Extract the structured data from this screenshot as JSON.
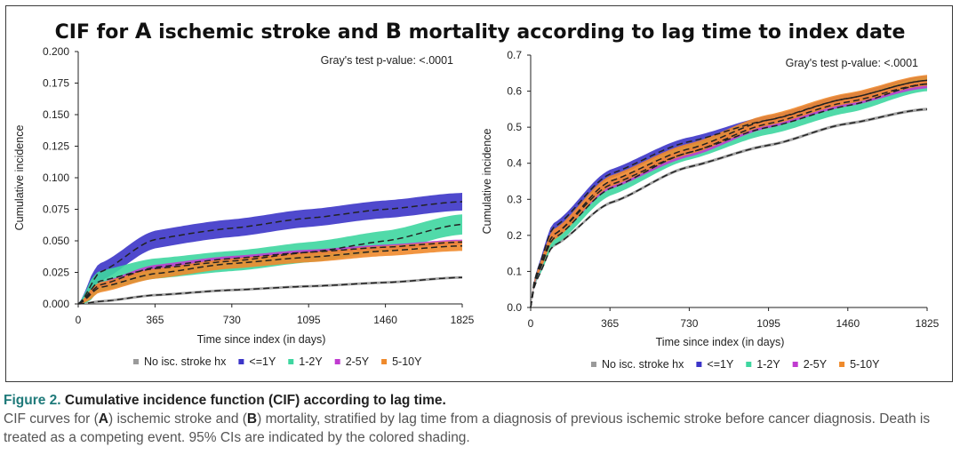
{
  "figure_title": {
    "part1": "CIF for ",
    "letter_a": "A",
    "part2": " ischemic stroke and ",
    "letter_b": "B",
    "part3": " mortality according to lag time to index date"
  },
  "caption": {
    "label": "Figure 2.",
    "title": "Cumulative incidence function (CIF) according to lag time.",
    "text1": "CIF curves for (",
    "a": "A",
    "text2": ") ischemic stroke and (",
    "b": "B",
    "text3": ") mortality, stratified by lag time from a diagnosis of previous ischemic stroke before cancer diagnosis. Death is treated as a competing event. 95% CIs are indicated by the colored shading."
  },
  "colors": {
    "No isc. stroke hx": "#9a9a9a",
    "<=1Y": "#3c35c8",
    "1-2Y": "#3ed6a0",
    "2-5Y": "#c03bd0",
    "5-10Y": "#ef8a2c"
  },
  "chart_data": [
    {
      "type": "line",
      "panel": "A",
      "annotation": "Gray's test p-value: <.0001",
      "xlabel": "Time since index (in days)",
      "ylabel": "Cumulative incidence",
      "xlim": [
        0,
        1825
      ],
      "ylim": [
        0,
        0.2
      ],
      "xticks": [
        "0",
        "365",
        "730",
        "1095",
        "1460",
        "1825"
      ],
      "yticks": [
        "0.000",
        "0.025",
        "0.050",
        "0.075",
        "0.100",
        "0.125",
        "0.150",
        "0.175",
        "0.200"
      ],
      "legend_position": "bottom",
      "x": [
        0,
        100,
        365,
        730,
        1095,
        1460,
        1825
      ],
      "series": [
        {
          "name": "No isc. stroke hx",
          "values": [
            0,
            0.002,
            0.007,
            0.011,
            0.014,
            0.017,
            0.021
          ],
          "ci": 0.001
        },
        {
          "name": "<=1Y",
          "values": [
            0,
            0.025,
            0.051,
            0.06,
            0.068,
            0.075,
            0.081
          ],
          "ci": 0.007
        },
        {
          "name": "1-2Y",
          "values": [
            0,
            0.018,
            0.028,
            0.034,
            0.041,
            0.05,
            0.063
          ],
          "ci": 0.008
        },
        {
          "name": "2-5Y",
          "values": [
            0,
            0.015,
            0.029,
            0.036,
            0.041,
            0.045,
            0.049
          ],
          "ci": 0.002
        },
        {
          "name": "5-10Y",
          "values": [
            0,
            0.013,
            0.024,
            0.032,
            0.037,
            0.042,
            0.046
          ],
          "ci": 0.004
        }
      ]
    },
    {
      "type": "line",
      "panel": "B",
      "annotation": "Gray's test p-value: <.0001",
      "xlabel": "Time since index (in days)",
      "ylabel": "Cumulative incidence",
      "xlim": [
        0,
        1825
      ],
      "ylim": [
        0,
        0.7
      ],
      "xticks": [
        "0",
        "365",
        "730",
        "1095",
        "1460",
        "1825"
      ],
      "yticks": [
        "0.0",
        "0.1",
        "0.2",
        "0.3",
        "0.4",
        "0.5",
        "0.6",
        "0.7"
      ],
      "legend_position": "bottom",
      "x": [
        0,
        20,
        100,
        365,
        730,
        1095,
        1460,
        1825
      ],
      "series": [
        {
          "name": "No isc. stroke hx",
          "values": [
            0,
            0.07,
            0.17,
            0.29,
            0.39,
            0.45,
            0.51,
            0.55
          ],
          "ci": 0.004
        },
        {
          "name": "<=1Y",
          "values": [
            0,
            0.09,
            0.22,
            0.37,
            0.46,
            0.52,
            0.58,
            0.63
          ],
          "ci": 0.012
        },
        {
          "name": "1-2Y",
          "values": [
            0,
            0.08,
            0.19,
            0.33,
            0.43,
            0.5,
            0.56,
            0.62
          ],
          "ci": 0.02
        },
        {
          "name": "2-5Y",
          "values": [
            0,
            0.08,
            0.2,
            0.34,
            0.43,
            0.51,
            0.57,
            0.62
          ],
          "ci": 0.012
        },
        {
          "name": "5-10Y",
          "values": [
            0,
            0.085,
            0.2,
            0.35,
            0.44,
            0.52,
            0.58,
            0.63
          ],
          "ci": 0.015
        }
      ]
    }
  ]
}
